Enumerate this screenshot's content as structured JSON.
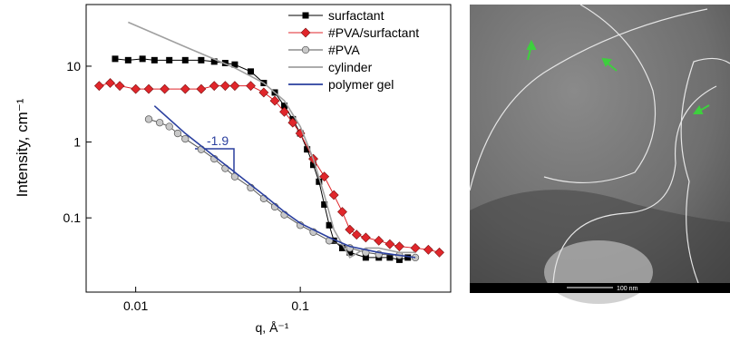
{
  "chart_data": {
    "type": "scatter",
    "log_x": true,
    "log_y": true,
    "xlabel": "q, Å⁻¹",
    "ylabel": "Intensity, cm⁻¹",
    "xlim": [
      0.005,
      0.82
    ],
    "ylim": [
      0.0105,
      65
    ],
    "xticks": [
      0.01,
      0.1
    ],
    "yticks": [
      0.1,
      1,
      10
    ],
    "legend": "upper right",
    "annotation": "-1.9",
    "series": [
      {
        "name": "surfactant",
        "color": "#000000",
        "marker": "square",
        "x": [
          0.0075,
          0.009,
          0.011,
          0.013,
          0.016,
          0.02,
          0.025,
          0.03,
          0.035,
          0.04,
          0.05,
          0.06,
          0.07,
          0.08,
          0.09,
          0.1,
          0.11,
          0.12,
          0.13,
          0.14,
          0.15,
          0.16,
          0.18,
          0.2,
          0.25,
          0.3,
          0.35,
          0.4,
          0.45
        ],
        "values": [
          12.5,
          12,
          12.5,
          12,
          12,
          12,
          12,
          11.5,
          11,
          10.5,
          8.5,
          6,
          4.5,
          3,
          2,
          1.3,
          0.8,
          0.5,
          0.3,
          0.15,
          0.08,
          0.05,
          0.04,
          0.035,
          0.03,
          0.03,
          0.03,
          0.028,
          0.03
        ]
      },
      {
        "name": "#PVA/surfactant",
        "color": "#e0262b",
        "marker": "diamond",
        "x": [
          0.006,
          0.007,
          0.008,
          0.01,
          0.012,
          0.015,
          0.02,
          0.025,
          0.03,
          0.035,
          0.04,
          0.05,
          0.06,
          0.07,
          0.08,
          0.09,
          0.1,
          0.12,
          0.14,
          0.16,
          0.18,
          0.2,
          0.22,
          0.25,
          0.3,
          0.35,
          0.4,
          0.5,
          0.6,
          0.7
        ],
        "values": [
          5.5,
          6,
          5.5,
          5,
          5,
          5,
          5,
          5,
          5.5,
          5.5,
          5.5,
          5.5,
          4.5,
          3.5,
          2.5,
          1.8,
          1.3,
          0.6,
          0.35,
          0.2,
          0.12,
          0.07,
          0.06,
          0.055,
          0.05,
          0.045,
          0.042,
          0.04,
          0.038,
          0.035
        ]
      },
      {
        "name": "#PVA",
        "color": "#9a9a9a",
        "marker": "circle",
        "x": [
          0.012,
          0.014,
          0.016,
          0.018,
          0.02,
          0.025,
          0.03,
          0.035,
          0.04,
          0.05,
          0.06,
          0.07,
          0.08,
          0.1,
          0.12,
          0.15,
          0.2,
          0.25,
          0.3,
          0.4,
          0.5
        ],
        "values": [
          2,
          1.8,
          1.6,
          1.3,
          1.1,
          0.8,
          0.6,
          0.45,
          0.35,
          0.25,
          0.18,
          0.14,
          0.11,
          0.08,
          0.065,
          0.05,
          0.04,
          0.035,
          0.033,
          0.032,
          0.03
        ]
      },
      {
        "name": "cylinder",
        "color": "#a0a0a0",
        "marker": "none",
        "x": [
          0.009,
          0.02,
          0.04,
          0.06,
          0.08,
          0.1,
          0.12,
          0.14,
          0.16,
          0.2,
          0.25,
          0.3,
          0.4,
          0.5
        ],
        "values": [
          38,
          18,
          9.5,
          6,
          3.5,
          1.6,
          0.6,
          0.2,
          0.07,
          0.03,
          0.04,
          0.04,
          0.035,
          0.035
        ]
      },
      {
        "name": "polymer gel",
        "color": "#2a3f9e",
        "marker": "none",
        "x": [
          0.013,
          0.02,
          0.03,
          0.04,
          0.06,
          0.08,
          0.1,
          0.15,
          0.2,
          0.3,
          0.5
        ],
        "values": [
          3,
          1.3,
          0.65,
          0.4,
          0.2,
          0.12,
          0.085,
          0.055,
          0.042,
          0.035,
          0.03
        ]
      }
    ]
  },
  "micrograph": {
    "scale_bar": "100 nm"
  }
}
